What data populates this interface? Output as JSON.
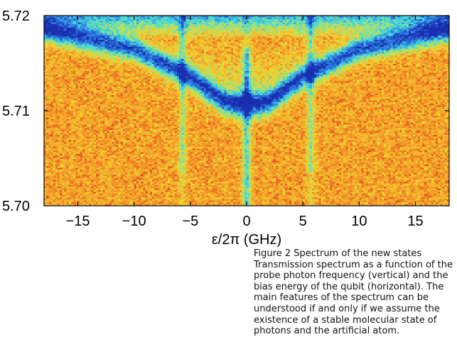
{
  "chart_data": {
    "type": "heatmap",
    "title": "",
    "xlabel": "ε/2π (GHz)",
    "ylabel": "",
    "xlim": [
      -18,
      18
    ],
    "ylim": [
      5.7,
      5.72
    ],
    "x_ticks": [
      -15,
      -10,
      -5,
      0,
      5,
      10,
      15
    ],
    "x_tick_labels": [
      "−15",
      "−10",
      "−5",
      "0",
      "5",
      "10",
      "15"
    ],
    "y_ticks": [
      5.7,
      5.71,
      5.72
    ],
    "y_tick_labels": [
      "5.70",
      "5.71",
      "5.72"
    ],
    "colorscale": [
      "#1a2fb0",
      "#2d78e0",
      "#3fd6e0",
      "#9ee27a",
      "#f2d22e",
      "#f3962a",
      "#e0441a"
    ],
    "features": {
      "center_dip_x": 0,
      "side_dips_x": [
        -5.7,
        5.7
      ],
      "resonance_branch": [
        {
          "x": -18,
          "y": 5.7185
        },
        {
          "x": -10,
          "y": 5.7165
        },
        {
          "x": -5,
          "y": 5.7135
        },
        {
          "x": -2,
          "y": 5.7108
        },
        {
          "x": -1,
          "y": 5.7105
        },
        {
          "x": 1,
          "y": 5.7105
        },
        {
          "x": 2,
          "y": 5.7108
        },
        {
          "x": 5,
          "y": 5.7135
        },
        {
          "x": 10,
          "y": 5.7165
        },
        {
          "x": 18,
          "y": 5.7185
        }
      ]
    }
  },
  "caption": {
    "title": "Figure 2  Spectrum of the new states",
    "body": "Transmission spectrum as a function of the probe photon frequency (vertical) and the bias energy of the qubit (horizontal). The main features of the spectrum can be understood if and only if we assume the existence of a stable molecular state of photons and the artificial atom."
  }
}
